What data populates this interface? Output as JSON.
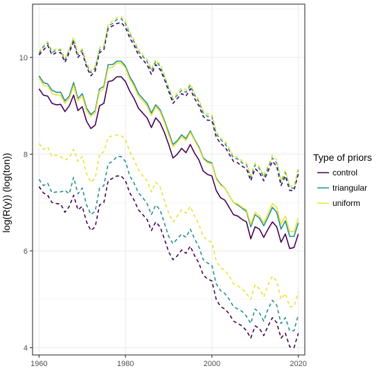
{
  "chart_data": {
    "type": "line",
    "title": "",
    "xlabel": "",
    "ylabel": "log(R(y))    (log(ton))",
    "xlim": [
      1958.5,
      2021.5
    ],
    "ylim": [
      3.85,
      11.1
    ],
    "xticks": [
      1960,
      1980,
      2000,
      2020
    ],
    "yticks": [
      4,
      6,
      8,
      10
    ],
    "grid": true,
    "legend": {
      "title": "Type of priors",
      "position": "right",
      "entries": [
        {
          "label": "control",
          "color": "#440154"
        },
        {
          "label": "triangular",
          "color": "#21908C"
        },
        {
          "label": "uniform",
          "color": "#E8E337"
        }
      ]
    },
    "x": [
      1960,
      1961,
      1962,
      1963,
      1964,
      1965,
      1966,
      1967,
      1968,
      1969,
      1970,
      1971,
      1972,
      1973,
      1974,
      1975,
      1976,
      1977,
      1978,
      1979,
      1980,
      1981,
      1982,
      1983,
      1984,
      1985,
      1986,
      1987,
      1988,
      1989,
      1990,
      1991,
      1992,
      1993,
      1994,
      1995,
      1996,
      1997,
      1998,
      1999,
      2000,
      2001,
      2002,
      2003,
      2004,
      2005,
      2006,
      2007,
      2008,
      2009,
      2010,
      2011,
      2012,
      2013,
      2014,
      2015,
      2016,
      2017,
      2018,
      2019,
      2020
    ],
    "series": [
      {
        "prior": "control",
        "style": "solid",
        "color": "#440154",
        "values": [
          9.35,
          9.22,
          9.2,
          9.05,
          9.02,
          9.03,
          8.88,
          9.0,
          9.22,
          8.9,
          8.98,
          8.68,
          8.53,
          8.6,
          9.0,
          9.05,
          9.5,
          9.52,
          9.6,
          9.6,
          9.5,
          9.3,
          9.15,
          8.95,
          8.85,
          8.75,
          8.55,
          8.75,
          8.65,
          8.45,
          8.2,
          7.92,
          8.0,
          8.12,
          8.03,
          8.2,
          8.02,
          7.88,
          7.65,
          7.58,
          7.55,
          7.25,
          7.1,
          7.05,
          6.9,
          6.75,
          6.72,
          6.65,
          6.6,
          6.25,
          6.5,
          6.45,
          6.28,
          6.45,
          6.6,
          6.5,
          6.18,
          6.35,
          6.05,
          6.07,
          6.35
        ]
      },
      {
        "prior": "triangular",
        "style": "solid",
        "color": "#21908C",
        "values": [
          9.62,
          9.48,
          9.45,
          9.32,
          9.28,
          9.28,
          9.1,
          9.2,
          9.48,
          9.15,
          9.25,
          8.95,
          8.82,
          8.9,
          9.35,
          9.4,
          9.85,
          9.85,
          9.92,
          9.92,
          9.82,
          9.6,
          9.45,
          9.25,
          9.15,
          9.05,
          8.85,
          9.02,
          8.92,
          8.7,
          8.45,
          8.2,
          8.28,
          8.4,
          8.32,
          8.48,
          8.3,
          8.15,
          7.92,
          7.85,
          7.82,
          7.5,
          7.38,
          7.3,
          7.15,
          7.0,
          6.95,
          6.88,
          6.82,
          6.5,
          6.75,
          6.68,
          6.52,
          6.7,
          6.9,
          6.8,
          6.45,
          6.62,
          6.3,
          6.3,
          6.58
        ]
      },
      {
        "prior": "uniform",
        "style": "solid",
        "color": "#E8E337",
        "values": [
          9.58,
          9.42,
          9.4,
          9.26,
          9.22,
          9.22,
          9.05,
          9.15,
          9.42,
          9.1,
          9.2,
          8.9,
          8.78,
          8.85,
          9.3,
          9.35,
          9.78,
          9.8,
          9.88,
          9.88,
          9.78,
          9.55,
          9.4,
          9.2,
          9.1,
          9.0,
          8.8,
          8.98,
          8.88,
          8.66,
          8.4,
          8.15,
          8.25,
          8.36,
          8.28,
          8.45,
          8.28,
          8.12,
          7.9,
          7.82,
          7.8,
          7.48,
          7.36,
          7.3,
          7.15,
          7.0,
          6.97,
          6.9,
          6.85,
          6.55,
          6.8,
          6.73,
          6.58,
          6.77,
          6.98,
          6.9,
          6.55,
          6.72,
          6.4,
          6.4,
          6.68
        ]
      },
      {
        "prior": "control",
        "style": "dashed",
        "color": "#440154",
        "values": [
          10.05,
          10.15,
          10.25,
          10.05,
          10.1,
          10.1,
          9.9,
          10.1,
          10.32,
          10.0,
          10.1,
          9.8,
          9.62,
          9.72,
          10.1,
          10.15,
          10.6,
          10.65,
          10.7,
          10.72,
          10.62,
          10.4,
          10.25,
          10.05,
          9.95,
          9.85,
          9.65,
          9.85,
          9.75,
          9.55,
          9.3,
          9.05,
          9.15,
          9.25,
          9.2,
          9.35,
          9.15,
          9.0,
          8.78,
          8.7,
          8.7,
          8.35,
          8.22,
          8.15,
          8.0,
          7.85,
          7.82,
          7.75,
          7.7,
          7.45,
          7.7,
          7.62,
          7.45,
          7.65,
          7.85,
          7.75,
          7.35,
          7.55,
          7.25,
          7.25,
          7.6
        ]
      },
      {
        "prior": "triangular",
        "style": "dashed",
        "color": "#21908C",
        "values": [
          10.08,
          10.22,
          10.3,
          10.1,
          10.15,
          10.15,
          9.95,
          10.15,
          10.38,
          10.05,
          10.15,
          9.85,
          9.68,
          9.78,
          10.15,
          10.2,
          10.65,
          10.7,
          10.78,
          10.8,
          10.7,
          10.48,
          10.32,
          10.12,
          10.02,
          9.92,
          9.72,
          9.92,
          9.82,
          9.6,
          9.35,
          9.12,
          9.22,
          9.32,
          9.28,
          9.42,
          9.22,
          9.08,
          8.85,
          8.78,
          8.78,
          8.42,
          8.3,
          8.22,
          8.08,
          7.92,
          7.9,
          7.82,
          7.78,
          7.52,
          7.78,
          7.7,
          7.52,
          7.72,
          7.92,
          7.82,
          7.42,
          7.62,
          7.3,
          7.3,
          7.68
        ]
      },
      {
        "prior": "uniform",
        "style": "dashed",
        "color": "#E8E337",
        "values": [
          10.12,
          10.25,
          10.33,
          10.14,
          10.18,
          10.18,
          9.98,
          10.18,
          10.42,
          10.08,
          10.18,
          9.88,
          9.72,
          9.82,
          10.2,
          10.25,
          10.7,
          10.75,
          10.82,
          10.85,
          10.75,
          10.52,
          10.36,
          10.16,
          10.06,
          9.96,
          9.76,
          9.96,
          9.86,
          9.64,
          9.4,
          9.16,
          9.27,
          9.37,
          9.33,
          9.46,
          9.26,
          9.12,
          8.9,
          8.83,
          8.83,
          8.47,
          8.34,
          8.27,
          8.12,
          7.96,
          7.94,
          7.86,
          7.82,
          7.56,
          7.82,
          7.74,
          7.56,
          7.76,
          7.98,
          7.88,
          7.46,
          7.66,
          7.34,
          7.34,
          7.72
        ]
      },
      {
        "prior": "control",
        "style": "dashed",
        "color": "#440154",
        "values": [
          7.33,
          7.2,
          7.15,
          7.0,
          6.98,
          6.97,
          6.8,
          6.92,
          7.15,
          6.85,
          6.92,
          6.6,
          6.42,
          6.5,
          6.95,
          7.0,
          7.45,
          7.5,
          7.55,
          7.55,
          7.45,
          7.2,
          7.05,
          6.85,
          6.75,
          6.65,
          6.42,
          6.6,
          6.5,
          6.25,
          5.98,
          5.82,
          5.9,
          6.02,
          5.95,
          6.1,
          5.9,
          5.75,
          5.5,
          5.42,
          5.38,
          5.0,
          4.85,
          4.8,
          4.7,
          4.55,
          4.5,
          4.45,
          4.35,
          4.2,
          4.45,
          4.4,
          4.25,
          4.45,
          4.62,
          4.52,
          4.2,
          4.3,
          4.02,
          4.0,
          4.3
        ]
      },
      {
        "prior": "triangular",
        "style": "dashed",
        "color": "#21908C",
        "values": [
          7.48,
          7.35,
          7.4,
          7.2,
          7.22,
          7.22,
          7.25,
          7.18,
          7.52,
          7.18,
          7.3,
          6.95,
          6.75,
          6.82,
          7.3,
          7.35,
          7.8,
          7.85,
          7.95,
          7.95,
          7.85,
          7.55,
          7.4,
          7.2,
          7.1,
          6.98,
          6.75,
          6.95,
          6.85,
          6.58,
          6.3,
          6.15,
          6.25,
          6.35,
          6.28,
          6.45,
          6.25,
          6.08,
          5.82,
          5.75,
          5.7,
          5.32,
          5.18,
          5.12,
          5.0,
          4.85,
          4.8,
          4.75,
          4.65,
          4.5,
          4.8,
          4.72,
          4.55,
          4.8,
          4.98,
          4.88,
          4.5,
          4.62,
          4.35,
          4.35,
          4.68
        ]
      },
      {
        "prior": "uniform",
        "style": "dashed",
        "color": "#E8E337",
        "values": [
          8.22,
          8.1,
          8.15,
          7.95,
          7.98,
          7.95,
          7.88,
          7.92,
          8.1,
          7.85,
          7.95,
          7.6,
          7.42,
          7.5,
          8.0,
          8.05,
          8.35,
          8.38,
          8.4,
          8.38,
          8.3,
          8.05,
          7.88,
          7.68,
          7.55,
          7.45,
          7.22,
          7.42,
          7.32,
          7.05,
          6.78,
          6.6,
          6.72,
          6.85,
          6.78,
          6.92,
          6.72,
          6.55,
          6.3,
          6.22,
          6.18,
          5.8,
          5.65,
          5.6,
          5.48,
          5.32,
          5.28,
          5.22,
          5.12,
          5.0,
          5.3,
          5.22,
          5.05,
          5.3,
          5.48,
          5.38,
          5.0,
          5.12,
          4.85,
          4.85,
          5.15
        ]
      }
    ]
  }
}
